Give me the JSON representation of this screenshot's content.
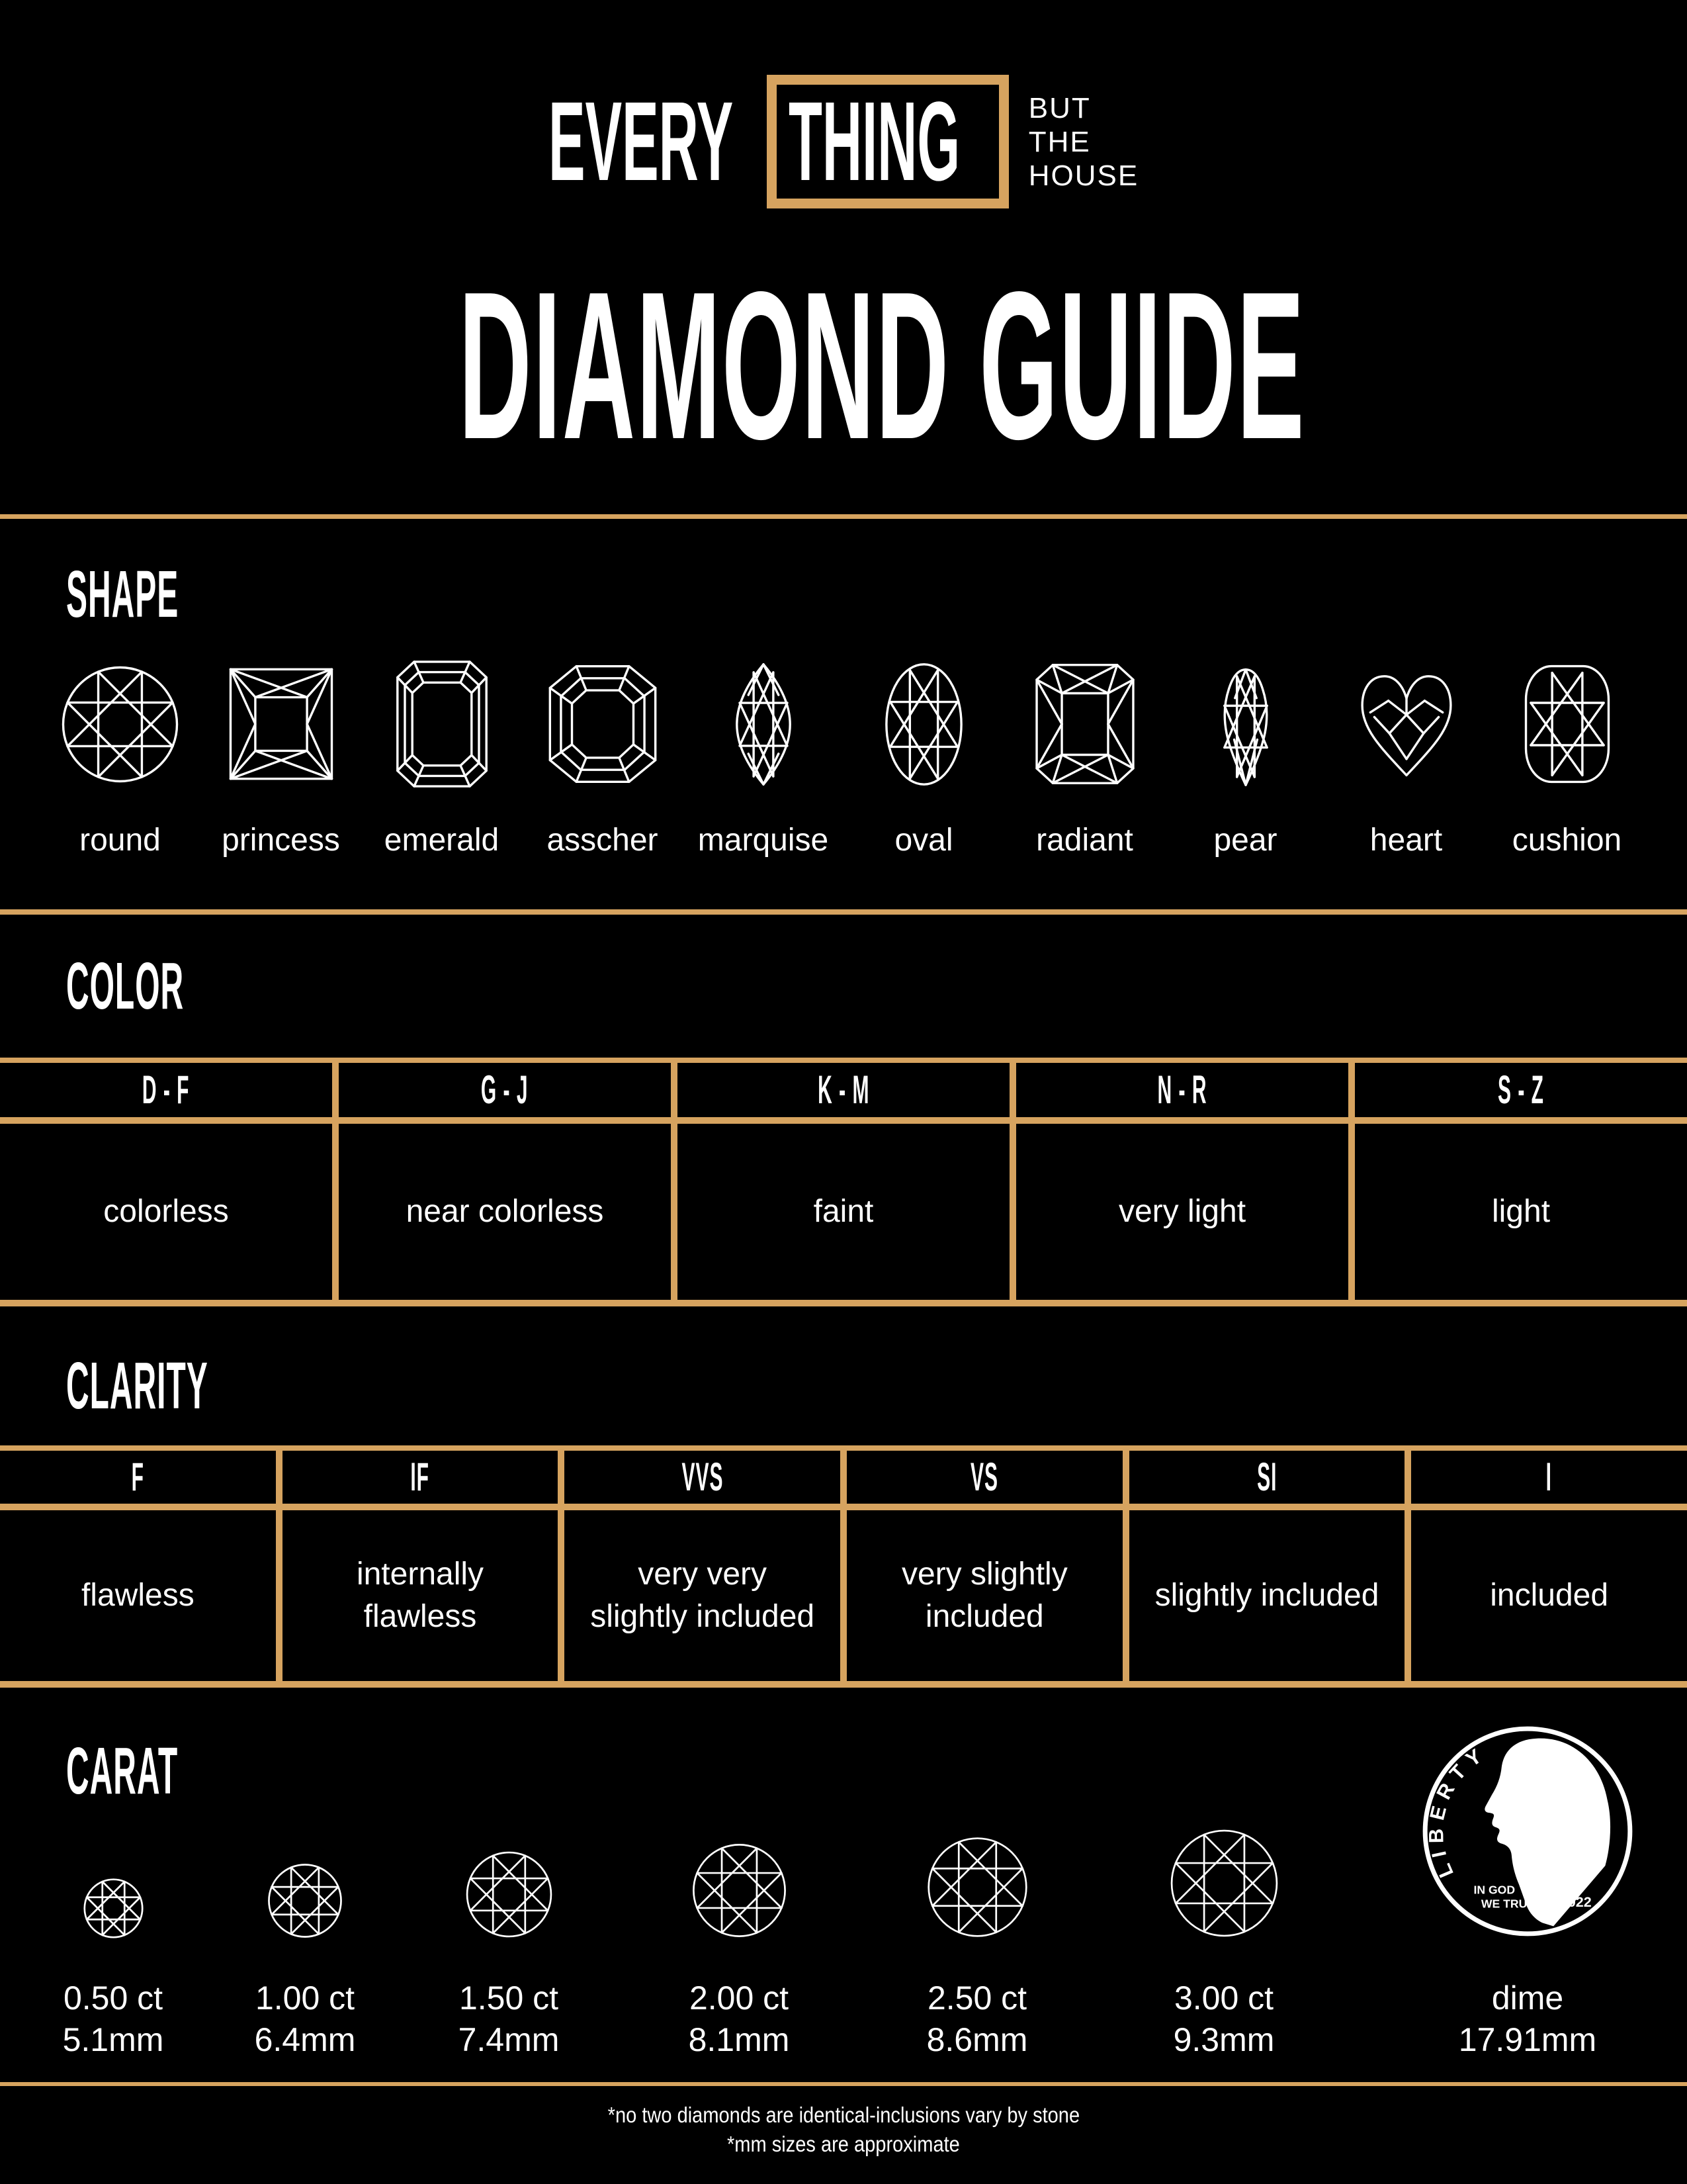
{
  "brand": {
    "word_outside": "EVERY",
    "word_boxed": "THING",
    "tagline_lines": [
      "BUT",
      "THE",
      "HOUSE"
    ]
  },
  "page_title": "DIAMOND GUIDE",
  "shape": {
    "heading": "SHAPE",
    "labels": [
      "round",
      "princess",
      "emerald",
      "asscher",
      "marquise",
      "oval",
      "radiant",
      "pear",
      "heart",
      "cushion"
    ]
  },
  "color": {
    "heading": "COLOR",
    "grades": [
      "D - F",
      "G - J",
      "K - M",
      "N - R",
      "S - Z"
    ],
    "descriptions": [
      "colorless",
      "near colorless",
      "faint",
      "very light",
      "light"
    ]
  },
  "clarity": {
    "heading": "CLARITY",
    "grades": [
      "F",
      "IF",
      "VVS",
      "VS",
      "SI",
      "I"
    ],
    "descriptions": [
      "flawless",
      "internally flawless",
      "very very slightly included",
      "very slightly included",
      "slightly included",
      "included"
    ]
  },
  "carat": {
    "heading": "CARAT",
    "stones": [
      {
        "carat": "0.50 ct",
        "size": "5.1mm",
        "mm": 5.1
      },
      {
        "carat": "1.00 ct",
        "size": "6.4mm",
        "mm": 6.4
      },
      {
        "carat": "1.50 ct",
        "size": "7.4mm",
        "mm": 7.4
      },
      {
        "carat": "2.00 ct",
        "size": "8.1mm",
        "mm": 8.1
      },
      {
        "carat": "2.50 ct",
        "size": "8.6mm",
        "mm": 8.6
      },
      {
        "carat": "3.00 ct",
        "size": "9.3mm",
        "mm": 9.3
      }
    ],
    "reference": {
      "label": "dime",
      "size": "17.91mm",
      "mm": 17.91,
      "coin_top_text": "LIBERTY",
      "coin_motto_line1": "IN GOD",
      "coin_motto_line2": "WE TRUST",
      "coin_year": "2022"
    }
  },
  "footnotes": [
    "*no two diamonds are identical-inclusions vary by stone",
    "*mm sizes are approximate"
  ],
  "colors": {
    "background": "#000000",
    "gold": "#D6A35F",
    "text": "#FFFFFF"
  }
}
